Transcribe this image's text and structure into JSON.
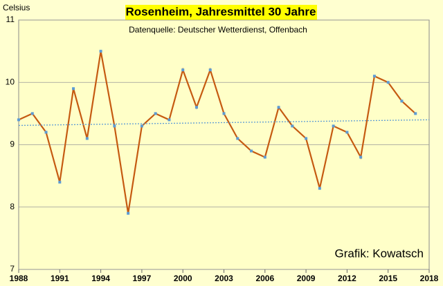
{
  "chart_data": {
    "type": "line",
    "title": "Rosenheim, Jahresmittel 30 Jahre",
    "subtitle": "Datenquelle: Deutscher Wetterdienst, Offenbach",
    "y_label": "Celsius",
    "annotation": "Grafik: Kowatsch",
    "x": [
      1988,
      1989,
      1990,
      1991,
      1992,
      1993,
      1994,
      1995,
      1996,
      1997,
      1998,
      1999,
      2000,
      2001,
      2002,
      2003,
      2004,
      2005,
      2006,
      2007,
      2008,
      2009,
      2010,
      2011,
      2012,
      2013,
      2014,
      2015,
      2016,
      2017
    ],
    "series": [
      {
        "color": "#c55a11",
        "marker_color": "#5b9bd5",
        "values": [
          9.4,
          9.5,
          9.2,
          8.4,
          9.9,
          9.1,
          10.5,
          9.3,
          7.9,
          9.3,
          9.5,
          9.4,
          10.2,
          9.6,
          10.2,
          9.5,
          9.1,
          8.9,
          8.8,
          9.6,
          9.3,
          9.1,
          8.3,
          9.3,
          9.2,
          8.8,
          10.1,
          10.0,
          9.7,
          9.5
        ]
      }
    ],
    "trend": {
      "color": "#5b9bd5",
      "x": [
        1988,
        2018
      ],
      "values": [
        9.31,
        9.4
      ]
    },
    "xlim": [
      1988,
      2018
    ],
    "xticks": [
      1988,
      1991,
      1994,
      1997,
      2000,
      2003,
      2006,
      2009,
      2012,
      2015,
      2018
    ],
    "ylim": [
      7,
      11
    ],
    "yticks": [
      7,
      8,
      9,
      10,
      11
    ],
    "grid": true
  }
}
